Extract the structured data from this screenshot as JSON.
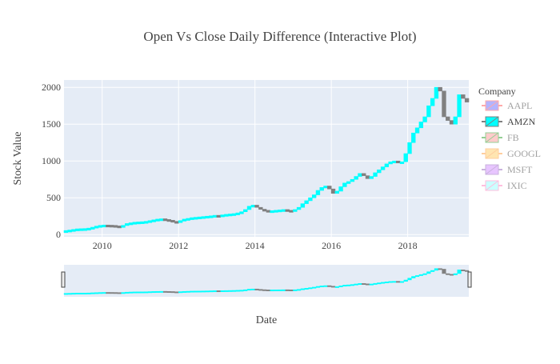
{
  "chart_data": {
    "type": "candlestick",
    "title": "Open Vs Close Daily Difference (Interactive Plot)",
    "xlabel": "Date",
    "ylabel": "Stock Value",
    "x_range": [
      2009.0,
      2019.6
    ],
    "ylim": [
      -30,
      2100
    ],
    "x_ticks": [
      2010,
      2012,
      2014,
      2016,
      2018
    ],
    "x_tick_labels": [
      "2010",
      "2012",
      "2014",
      "2016",
      "2018"
    ],
    "y_ticks": [
      0,
      500,
      1000,
      1500,
      2000
    ],
    "y_tick_labels": [
      "0",
      "500",
      "1000",
      "1500",
      "2000"
    ],
    "grid": true,
    "range_slider": true,
    "legend": {
      "title": "Company",
      "placement": "right",
      "items": [
        {
          "label": "AAPL",
          "color": "#6b6bff",
          "line": "#ff5555",
          "active": false
        },
        {
          "label": "AMZN",
          "color": "#00ffff",
          "line": "#808080",
          "active": true
        },
        {
          "label": "FB",
          "color": "#ff9999",
          "line": "#2ca02c",
          "active": false
        },
        {
          "label": "GOOGL",
          "color": "#ffcc66",
          "line": "#ff9f3f",
          "active": false
        },
        {
          "label": "MSFT",
          "color": "#d08cff",
          "line": "#9467bd",
          "active": false
        },
        {
          "label": "IXIC",
          "color": "#99ffff",
          "line": "#ff7fbf",
          "active": false
        }
      ]
    },
    "series": [
      {
        "name": "AMZN",
        "increasing_color": "#00ffff",
        "decreasing_color": "#808080",
        "x": [
          2009.0,
          2009.1,
          2009.2,
          2009.3,
          2009.4,
          2009.5,
          2009.6,
          2009.7,
          2009.8,
          2009.9,
          2010.0,
          2010.1,
          2010.2,
          2010.3,
          2010.4,
          2010.5,
          2010.6,
          2010.7,
          2010.8,
          2010.9,
          2011.0,
          2011.1,
          2011.2,
          2011.3,
          2011.4,
          2011.5,
          2011.6,
          2011.7,
          2011.8,
          2011.9,
          2012.0,
          2012.1,
          2012.2,
          2012.3,
          2012.4,
          2012.5,
          2012.6,
          2012.7,
          2012.8,
          2012.9,
          2013.0,
          2013.1,
          2013.2,
          2013.3,
          2013.4,
          2013.5,
          2013.6,
          2013.7,
          2013.8,
          2013.9,
          2014.0,
          2014.1,
          2014.2,
          2014.3,
          2014.4,
          2014.5,
          2014.6,
          2014.7,
          2014.8,
          2014.9,
          2015.0,
          2015.1,
          2015.2,
          2015.3,
          2015.4,
          2015.5,
          2015.6,
          2015.7,
          2015.8,
          2015.9,
          2016.0,
          2016.1,
          2016.2,
          2016.3,
          2016.4,
          2016.5,
          2016.6,
          2016.7,
          2016.8,
          2016.9,
          2017.0,
          2017.1,
          2017.2,
          2017.3,
          2017.4,
          2017.5,
          2017.6,
          2017.7,
          2017.8,
          2017.9,
          2018.0,
          2018.1,
          2018.2,
          2018.3,
          2018.4,
          2018.5,
          2018.6,
          2018.7,
          2018.8,
          2018.9,
          2019.0,
          2019.1,
          2019.2,
          2019.3,
          2019.4,
          2019.5
        ],
        "y": [
          55,
          62,
          70,
          78,
          80,
          82,
          88,
          100,
          115,
          125,
          130,
          128,
          125,
          118,
          112,
          125,
          150,
          160,
          168,
          172,
          175,
          180,
          190,
          200,
          210,
          215,
          205,
          195,
          180,
          175,
          190,
          210,
          220,
          230,
          235,
          240,
          245,
          250,
          255,
          262,
          260,
          268,
          275,
          280,
          285,
          295,
          310,
          340,
          385,
          400,
          370,
          345,
          330,
          320,
          325,
          330,
          335,
          340,
          330,
          315,
          340,
          370,
          420,
          460,
          500,
          540,
          600,
          640,
          660,
          620,
          560,
          590,
          650,
          700,
          720,
          750,
          790,
          830,
          800,
          760,
          790,
          840,
          880,
          920,
          960,
          990,
          1000,
          980,
          990,
          1100,
          1250,
          1380,
          1450,
          1530,
          1600,
          1750,
          1850,
          2000,
          1950,
          1600,
          1550,
          1500,
          1600,
          1900,
          1850,
          1800
        ]
      }
    ]
  }
}
